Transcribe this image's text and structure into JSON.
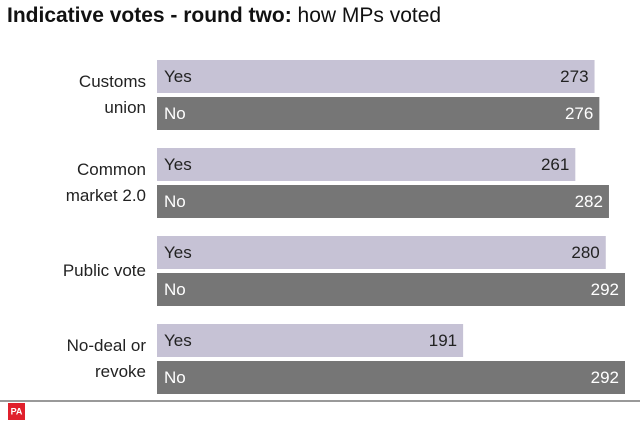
{
  "chart_data": {
    "type": "bar",
    "orientation": "horizontal",
    "title": "Indicative votes - round two:",
    "subtitle": "how MPs voted",
    "categories": [
      "Customs union",
      "Common market 2.0",
      "Public vote",
      "No-deal or revoke"
    ],
    "series": [
      {
        "name": "Yes",
        "color": "#c6c2d5",
        "label_color": "#222222",
        "values": [
          273,
          261,
          280,
          191
        ]
      },
      {
        "name": "No",
        "color": "#767676",
        "label_color": "#ffffff",
        "values": [
          276,
          282,
          292,
          292
        ]
      }
    ],
    "logo": "PA"
  }
}
